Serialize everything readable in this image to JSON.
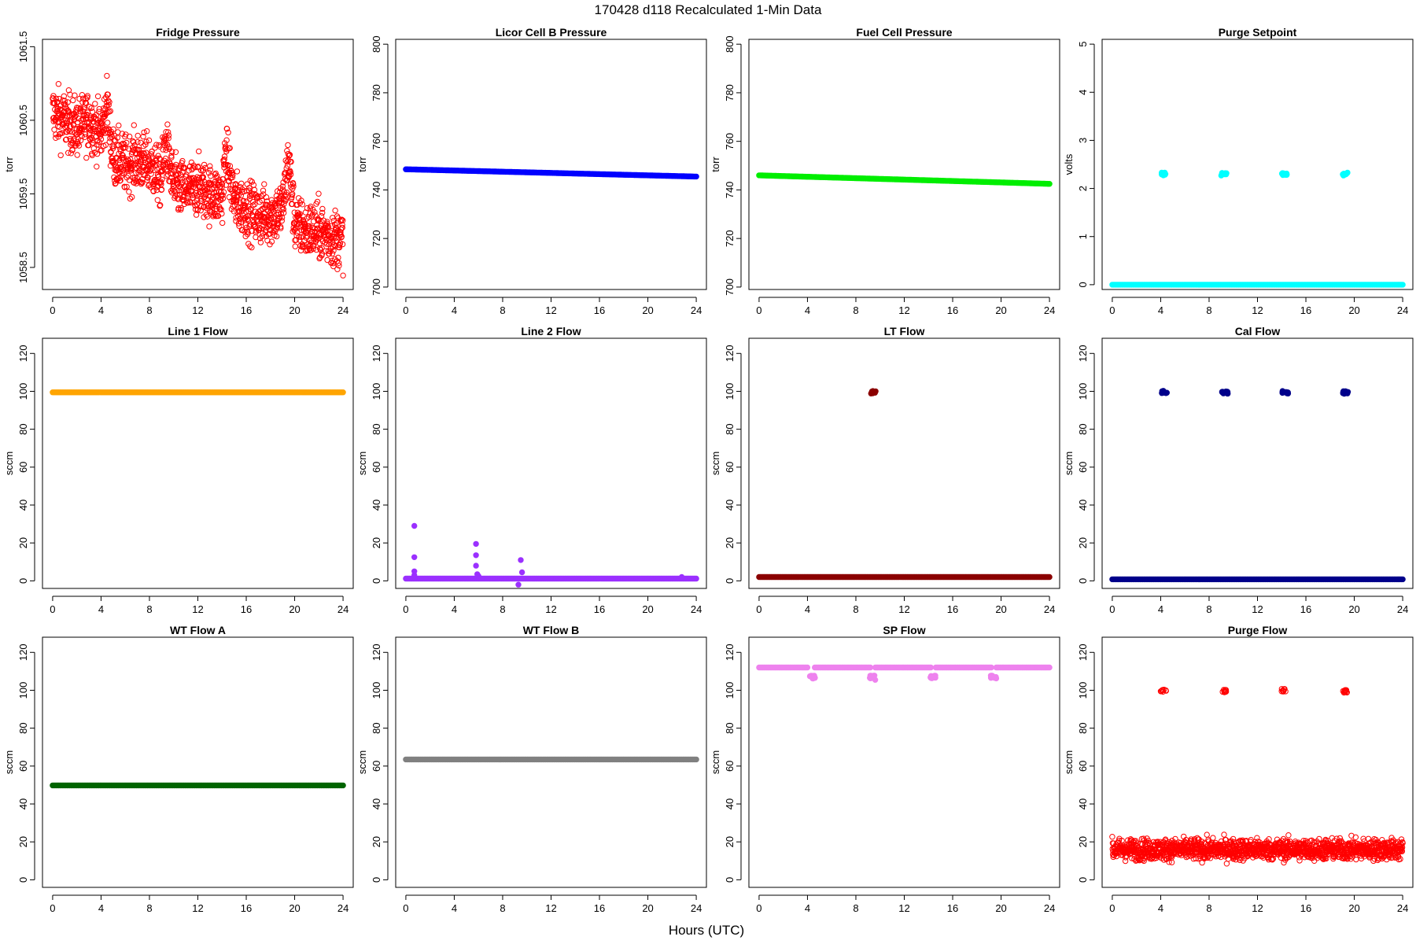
{
  "figure": {
    "title": "170428   d118   Recalculated 1-Min Data",
    "xlabel": "Hours (UTC)"
  },
  "chart_data": [
    {
      "type": "scatter",
      "title": "Fridge Pressure",
      "ylabel": "torr",
      "xlim": [
        0,
        24
      ],
      "ylim": [
        1058.2,
        1061.6
      ],
      "xticks": [
        0,
        4,
        8,
        12,
        16,
        20,
        24
      ],
      "yticks": [
        1058.5,
        1059.5,
        1060.5,
        1061.5
      ],
      "color": "#ff0000",
      "marker": "open-circle",
      "series": [
        {
          "x": [
            0.0,
            1.0,
            2.0,
            3.0,
            4.0,
            4.5,
            5.0,
            6.0,
            7.0,
            8.0,
            9.0,
            9.3,
            10.0,
            11.0,
            12.0,
            13.0,
            14.0,
            14.3,
            15.0,
            16.0,
            17.0,
            18.0,
            19.0,
            19.5,
            20.0,
            21.0,
            22.0,
            23.0,
            24.0
          ],
          "y": [
            1060.6,
            1060.5,
            1060.4,
            1060.5,
            1060.3,
            1060.7,
            1060.0,
            1059.9,
            1059.95,
            1059.9,
            1059.7,
            1060.2,
            1059.6,
            1059.55,
            1059.6,
            1059.5,
            1059.45,
            1060.1,
            1059.4,
            1059.3,
            1059.2,
            1059.2,
            1059.3,
            1060.0,
            1059.1,
            1059.0,
            1059.0,
            1058.9,
            1058.9
          ],
          "scatter": 0.35
        }
      ]
    },
    {
      "type": "scatter",
      "title": "Licor Cell B Pressure",
      "ylabel": "torr",
      "xlim": [
        0,
        24
      ],
      "ylim": [
        699,
        802
      ],
      "xticks": [
        0,
        4,
        8,
        12,
        16,
        20,
        24
      ],
      "yticks": [
        700,
        720,
        740,
        760,
        780,
        800
      ],
      "color": "#0000ff",
      "marker": "filled",
      "series": [
        {
          "x": [
            0,
            24
          ],
          "y": [
            748.5,
            745.5
          ],
          "scatter": 0
        }
      ]
    },
    {
      "type": "scatter",
      "title": "Fuel Cell Pressure",
      "ylabel": "torr",
      "xlim": [
        0,
        24
      ],
      "ylim": [
        699,
        802
      ],
      "xticks": [
        0,
        4,
        8,
        12,
        16,
        20,
        24
      ],
      "yticks": [
        700,
        720,
        740,
        760,
        780,
        800
      ],
      "color": "#00ee00",
      "marker": "filled",
      "series": [
        {
          "x": [
            0,
            24
          ],
          "y": [
            746.0,
            742.5
          ],
          "scatter": 0
        }
      ]
    },
    {
      "type": "scatter",
      "title": "Purge Setpoint",
      "ylabel": "volts",
      "xlim": [
        0,
        24
      ],
      "ylim": [
        -0.1,
        5.1
      ],
      "xticks": [
        0,
        4,
        8,
        12,
        16,
        20,
        24
      ],
      "yticks": [
        0,
        1,
        2,
        3,
        4,
        5
      ],
      "color": "#00ffff",
      "marker": "filled",
      "series": [
        {
          "x": [
            0,
            24
          ],
          "y": [
            0,
            0
          ],
          "scatter": 0
        }
      ],
      "clusters": [
        {
          "x": 4.2,
          "y": 2.3
        },
        {
          "x": 9.2,
          "y": 2.3
        },
        {
          "x": 14.2,
          "y": 2.3
        },
        {
          "x": 19.2,
          "y": 2.3
        }
      ]
    },
    {
      "type": "scatter",
      "title": "Line 1 Flow",
      "ylabel": "sccm",
      "xlim": [
        0,
        24
      ],
      "ylim": [
        -4,
        128
      ],
      "xticks": [
        0,
        4,
        8,
        12,
        16,
        20,
        24
      ],
      "yticks": [
        0,
        20,
        40,
        60,
        80,
        100,
        120
      ],
      "color": "#ffa500",
      "marker": "filled",
      "series": [
        {
          "x": [
            0,
            24
          ],
          "y": [
            99.5,
            99.5
          ],
          "scatter": 0
        }
      ]
    },
    {
      "type": "scatter",
      "title": "Line 2 Flow",
      "ylabel": "sccm",
      "xlim": [
        0,
        24
      ],
      "ylim": [
        -4,
        128
      ],
      "xticks": [
        0,
        4,
        8,
        12,
        16,
        20,
        24
      ],
      "yticks": [
        0,
        20,
        40,
        60,
        80,
        100,
        120
      ],
      "color": "#9b30ff",
      "marker": "filled",
      "series": [
        {
          "x": [
            0,
            24
          ],
          "y": [
            1.2,
            1.2
          ],
          "scatter": 0
        }
      ],
      "outliers": [
        {
          "x": 0.7,
          "y": 29
        },
        {
          "x": 0.7,
          "y": 12.5
        },
        {
          "x": 0.7,
          "y": 5
        },
        {
          "x": 0.7,
          "y": 3
        },
        {
          "x": 5.8,
          "y": 19.5
        },
        {
          "x": 5.8,
          "y": 13.5
        },
        {
          "x": 5.8,
          "y": 8
        },
        {
          "x": 5.9,
          "y": 3.5
        },
        {
          "x": 6.0,
          "y": 2.5
        },
        {
          "x": 9.5,
          "y": 11
        },
        {
          "x": 9.6,
          "y": 4.5
        },
        {
          "x": 9.3,
          "y": -2
        },
        {
          "x": 22.8,
          "y": 2
        }
      ]
    },
    {
      "type": "scatter",
      "title": "LT Flow",
      "ylabel": "sccm",
      "xlim": [
        0,
        24
      ],
      "ylim": [
        -4,
        128
      ],
      "xticks": [
        0,
        4,
        8,
        12,
        16,
        20,
        24
      ],
      "yticks": [
        0,
        20,
        40,
        60,
        80,
        100,
        120
      ],
      "color": "#8b0000",
      "marker": "filled",
      "series": [
        {
          "x": [
            0,
            24
          ],
          "y": [
            2.0,
            2.0
          ],
          "scatter": 0
        }
      ],
      "clusters": [
        {
          "x": 9.4,
          "y": 99.5
        }
      ]
    },
    {
      "type": "scatter",
      "title": "Cal Flow",
      "ylabel": "sccm",
      "xlim": [
        0,
        24
      ],
      "ylim": [
        -4,
        128
      ],
      "xticks": [
        0,
        4,
        8,
        12,
        16,
        20,
        24
      ],
      "yticks": [
        0,
        20,
        40,
        60,
        80,
        100,
        120
      ],
      "color": "#00008b",
      "marker": "filled",
      "series": [
        {
          "x": [
            0,
            24
          ],
          "y": [
            0.8,
            0.8
          ],
          "scatter": 0
        }
      ],
      "clusters": [
        {
          "x": 4.3,
          "y": 99.5
        },
        {
          "x": 9.3,
          "y": 99.5
        },
        {
          "x": 14.3,
          "y": 99.5
        },
        {
          "x": 19.3,
          "y": 99.5
        }
      ]
    },
    {
      "type": "scatter",
      "title": "WT Flow A",
      "ylabel": "sccm",
      "xlim": [
        0,
        24
      ],
      "ylim": [
        -4,
        128
      ],
      "xticks": [
        0,
        4,
        8,
        12,
        16,
        20,
        24
      ],
      "yticks": [
        0,
        20,
        40,
        60,
        80,
        100,
        120
      ],
      "color": "#006400",
      "marker": "filled",
      "series": [
        {
          "x": [
            0,
            24
          ],
          "y": [
            49.8,
            49.8
          ],
          "scatter": 0
        }
      ]
    },
    {
      "type": "scatter",
      "title": "WT Flow B",
      "ylabel": "sccm",
      "xlim": [
        0,
        24
      ],
      "ylim": [
        -4,
        128
      ],
      "xticks": [
        0,
        4,
        8,
        12,
        16,
        20,
        24
      ],
      "yticks": [
        0,
        20,
        40,
        60,
        80,
        100,
        120
      ],
      "color": "#808080",
      "marker": "filled",
      "series": [
        {
          "x": [
            0,
            24
          ],
          "y": [
            63.5,
            63.5
          ],
          "scatter": 0
        }
      ]
    },
    {
      "type": "scatter",
      "title": "SP Flow",
      "ylabel": "sccm",
      "xlim": [
        0,
        24
      ],
      "ylim": [
        -4,
        128
      ],
      "xticks": [
        0,
        4,
        8,
        12,
        16,
        20,
        24
      ],
      "yticks": [
        0,
        20,
        40,
        60,
        80,
        100,
        120
      ],
      "color": "#ee82ee",
      "marker": "filled",
      "series": [
        {
          "x": [
            0,
            4.0
          ],
          "y": [
            112,
            112
          ],
          "scatter": 0
        },
        {
          "x": [
            4.6,
            9.2
          ],
          "y": [
            112,
            112
          ],
          "scatter": 0
        },
        {
          "x": [
            9.6,
            14.2
          ],
          "y": [
            112,
            112
          ],
          "scatter": 0
        },
        {
          "x": [
            14.6,
            19.2
          ],
          "y": [
            112,
            112
          ],
          "scatter": 0
        },
        {
          "x": [
            19.6,
            24
          ],
          "y": [
            112,
            112
          ],
          "scatter": 0
        }
      ],
      "clusters": [
        {
          "x": 4.4,
          "y": 107
        },
        {
          "x": 9.4,
          "y": 107
        },
        {
          "x": 14.4,
          "y": 107
        },
        {
          "x": 19.4,
          "y": 107
        }
      ],
      "outliers": [
        {
          "x": 9.6,
          "y": 105.5
        },
        {
          "x": 9.3,
          "y": 107.5
        }
      ]
    },
    {
      "type": "scatter",
      "title": "Purge Flow",
      "ylabel": "sccm",
      "xlim": [
        0,
        24
      ],
      "ylim": [
        -4,
        128
      ],
      "xticks": [
        0,
        4,
        8,
        12,
        16,
        20,
        24
      ],
      "yticks": [
        0,
        20,
        40,
        60,
        80,
        100,
        120
      ],
      "color": "#ff0000",
      "marker": "open-circle",
      "series": [
        {
          "x": [
            0,
            24
          ],
          "y": [
            16,
            16
          ],
          "scatter": 5
        }
      ],
      "clusters": [
        {
          "x": 4.2,
          "y": 100
        },
        {
          "x": 9.2,
          "y": 99.5
        },
        {
          "x": 14.2,
          "y": 100
        },
        {
          "x": 19.2,
          "y": 99.5
        }
      ]
    }
  ]
}
